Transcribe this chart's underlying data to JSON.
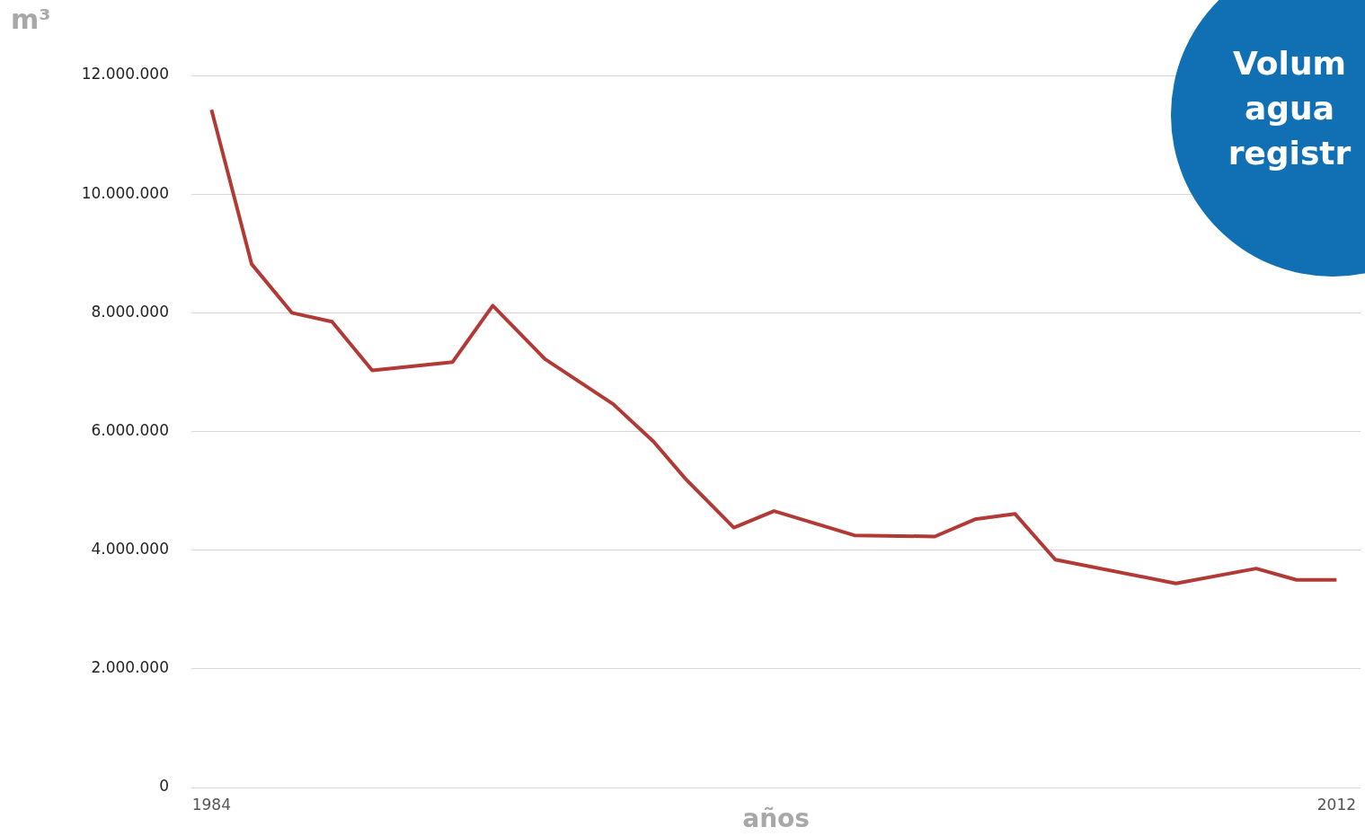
{
  "chart_data": {
    "type": "line",
    "ylabel": "m³",
    "xlabel": "años",
    "annotations": [
      "Volum\nagua\nregistr"
    ],
    "x": [
      1984,
      1985,
      1986,
      1987,
      1988,
      1990,
      1991,
      1992.3,
      1994,
      1995,
      1995.8,
      1997,
      1998,
      2000,
      2002,
      2003,
      2004,
      2005,
      2008,
      2010,
      2011,
      2012
    ],
    "series": [
      {
        "color": "#b23a36",
        "values": [
          11420000,
          8820000,
          8000000,
          7850000,
          7030000,
          7170000,
          8120000,
          7220000,
          6460000,
          5830000,
          5200000,
          4380000,
          4660000,
          4250000,
          4230000,
          4520000,
          4610000,
          3840000,
          3440000,
          3690000,
          3500000,
          3500000
        ]
      }
    ],
    "xlim": [
      1983.5,
      2012.6
    ],
    "xticks": [
      1984,
      2012
    ],
    "ylim": [
      0,
      12000000
    ],
    "yticks": [
      {
        "value": 0,
        "label": "0"
      },
      {
        "value": 2000000,
        "label": "2.000.000"
      },
      {
        "value": 4000000,
        "label": "4.000.000"
      },
      {
        "value": 6000000,
        "label": "6.000.000"
      },
      {
        "value": 8000000,
        "label": "8.000.000"
      },
      {
        "value": 10000000,
        "label": "10.000.000"
      },
      {
        "value": 12000000,
        "label": "12.000.000"
      }
    ],
    "grid": "y",
    "legend": false,
    "marker": "none",
    "line_style": "solid"
  }
}
